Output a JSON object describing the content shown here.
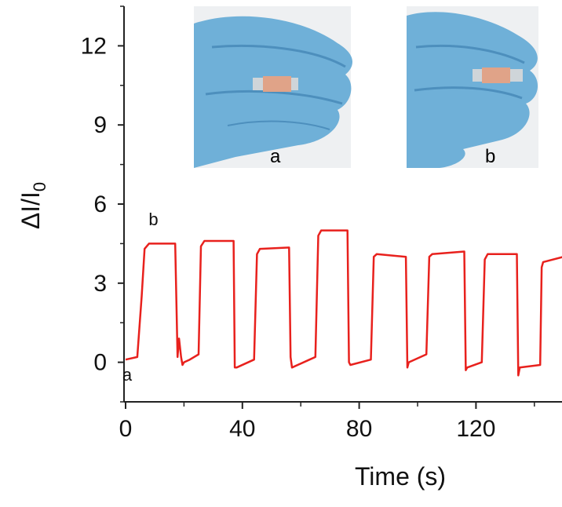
{
  "chart_data": {
    "type": "line",
    "xlabel": "Time (s)",
    "ylabel": "ΔI/I",
    "ylabel_subscript": "0",
    "xlim": [
      0,
      150
    ],
    "ylim": [
      -1.5,
      13.5
    ],
    "x_ticks": [
      0,
      40,
      80,
      120
    ],
    "y_ticks": [
      0,
      3,
      6,
      9,
      12
    ],
    "grid": false,
    "series": [
      {
        "color": "#e8211d",
        "x": [
          0,
          4,
          5.5,
          6.5,
          8,
          17,
          17.8,
          18.3,
          19,
          19.5,
          20,
          22,
          25,
          25.8,
          27,
          37,
          37.4,
          38,
          44,
          45,
          46,
          56,
          56.5,
          57,
          63,
          65,
          66,
          67,
          76,
          76.5,
          77,
          84,
          85,
          86,
          96,
          96.5,
          97,
          103,
          104,
          105,
          116,
          116.5,
          117,
          122,
          123,
          124,
          134,
          134.5,
          135,
          142,
          142.5,
          143,
          150
        ],
        "y": [
          0.1,
          0.2,
          2.5,
          4.3,
          4.5,
          4.5,
          0.2,
          0.9,
          0.2,
          -0.1,
          0.0,
          0.1,
          0.3,
          4.4,
          4.6,
          4.6,
          -0.2,
          -0.2,
          0.1,
          4.1,
          4.3,
          4.35,
          0.2,
          -0.2,
          0.1,
          0.2,
          4.8,
          5.0,
          5.0,
          0.0,
          -0.1,
          0.1,
          4.0,
          4.1,
          4.0,
          -0.2,
          0.0,
          0.3,
          4.0,
          4.1,
          4.2,
          -0.3,
          -0.2,
          0.0,
          3.9,
          4.1,
          4.1,
          -0.5,
          -0.2,
          -0.1,
          3.6,
          3.8,
          4.0
        ]
      }
    ],
    "annotations": [
      {
        "text": "a",
        "x": 0.5,
        "y": -0.7
      },
      {
        "text": "b",
        "x": 9.5,
        "y": 5.2
      }
    ],
    "insets": [
      {
        "label": "a"
      },
      {
        "label": "b"
      }
    ]
  }
}
